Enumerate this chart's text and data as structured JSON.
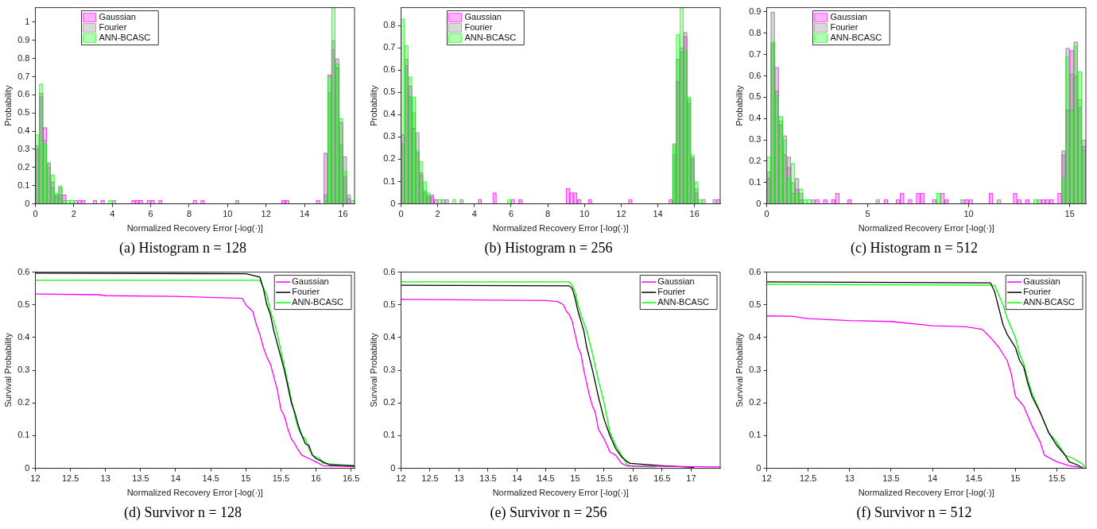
{
  "chart_data": [
    {
      "type": "histogram",
      "title": "(a) Histogram n = 128",
      "xlabel": "Normalized Recovery Error [-log(·)]",
      "ylabel": "Probability",
      "legend": "top left",
      "bins": [
        0,
        0.2,
        0.4,
        0.6,
        0.8,
        1,
        1.2,
        1.4,
        1.6,
        1.8,
        2,
        2.2,
        2.4,
        2.6,
        3,
        3.2,
        3.4,
        3.6,
        3.8,
        4,
        4.2,
        5,
        5.2,
        5.4,
        5.6,
        5.8,
        6,
        6.2,
        6.4,
        6.6,
        8.2,
        8.4,
        8.6,
        8.8,
        10.4,
        10.6,
        12.8,
        13,
        13.2,
        14.6,
        14.8,
        15,
        15.2,
        15.4,
        15.6,
        15.8,
        16,
        16.2,
        16.4,
        16.6
      ],
      "series": [
        {
          "name": "Gaussian",
          "color": "#ff00ff",
          "values": [
            0.3,
            0.59,
            0.42,
            0.22,
            0.12,
            0.05,
            0.05,
            0.05,
            0,
            0,
            0,
            0.02,
            0.02,
            0,
            0.02,
            0,
            0.02,
            0,
            0,
            0,
            0,
            0.02,
            0.02,
            0.02,
            0,
            0.02,
            0.02,
            0,
            0.02,
            0,
            0.02,
            0,
            0.02,
            0,
            0,
            0,
            0.02,
            0.02,
            0,
            0.02,
            0,
            0.28,
            0.71,
            0.85,
            0.75,
            0.45,
            0.15,
            0.03,
            0
          ]
        },
        {
          "name": "Fourier",
          "color": "#808080",
          "values": [
            0.32,
            0.61,
            0.35,
            0.2,
            0.09,
            0.04,
            0.09,
            0,
            0,
            0,
            0.02,
            0,
            0,
            0,
            0,
            0,
            0,
            0,
            0,
            0.02,
            0,
            0,
            0,
            0,
            0,
            0,
            0,
            0,
            0,
            0,
            0,
            0,
            0,
            0,
            0.02,
            0,
            0,
            0,
            0,
            0,
            0,
            0.05,
            0.61,
            0.9,
            0.8,
            0.33,
            0.26,
            0.05,
            0
          ]
        },
        {
          "name": "ANN-BCASC",
          "color": "#00ff00",
          "values": [
            0.38,
            0.66,
            0.33,
            0.23,
            0.16,
            0.06,
            0.1,
            0.02,
            0.02,
            0.02,
            0,
            0,
            0,
            0,
            0,
            0,
            0,
            0,
            0.02,
            0,
            0,
            0,
            0,
            0,
            0,
            0,
            0,
            0,
            0,
            0,
            0,
            0,
            0,
            0,
            0,
            0,
            0,
            0,
            0,
            0,
            0,
            0.02,
            0.7,
            1.08,
            0.77,
            0.47,
            0.18,
            0,
            0.02
          ]
        }
      ],
      "xlim": [
        0,
        16.6
      ],
      "xticks": [
        0,
        2,
        4,
        6,
        8,
        10,
        12,
        14,
        16
      ],
      "ylim": [
        0,
        1.08
      ],
      "yticks": [
        0,
        0.1,
        0.2,
        0.3,
        0.4,
        0.5,
        0.6,
        0.7,
        0.8,
        0.9,
        1
      ]
    },
    {
      "type": "histogram",
      "title": "(b) Histogram n = 256",
      "xlabel": "Normalized Recovery Error [-log(·)]",
      "ylabel": "Probability",
      "legend": "top left",
      "bins": [
        0,
        0.2,
        0.4,
        0.6,
        0.8,
        1,
        1.2,
        1.4,
        1.6,
        1.8,
        2,
        2.2,
        2.4,
        2.6,
        2.8,
        3,
        3.2,
        3.4,
        4.2,
        4.4,
        5,
        5.2,
        5.8,
        6,
        6.2,
        6.4,
        6.6,
        9,
        9.2,
        9.4,
        9.6,
        9.8,
        10.2,
        10.4,
        12.4,
        12.6,
        14.6,
        14.8,
        15,
        15.2,
        15.4,
        15.6,
        15.8,
        16,
        16.2,
        16.4,
        16.6,
        17,
        17.2,
        17.4
      ],
      "series": [
        {
          "name": "Gaussian",
          "color": "#ff00ff",
          "values": [
            0.31,
            0.62,
            0.53,
            0.34,
            0.23,
            0.14,
            0.05,
            0.03,
            0.04,
            0.02,
            0,
            0,
            0,
            0,
            0,
            0,
            0,
            0,
            0.02,
            0,
            0.05,
            0,
            0,
            0.02,
            0,
            0.02,
            0,
            0.07,
            0.05,
            0.05,
            0.02,
            0,
            0.02,
            0,
            0.02,
            0,
            0.02,
            0.22,
            0.55,
            0.68,
            0.75,
            0.45,
            0.2,
            0.05,
            0,
            0,
            0,
            0,
            0.02
          ]
        },
        {
          "name": "Fourier",
          "color": "#808080",
          "values": [
            0.27,
            0.65,
            0.48,
            0.41,
            0.32,
            0.13,
            0.06,
            0.04,
            0.03,
            0,
            0,
            0.02,
            0.02,
            0,
            0,
            0,
            0.02,
            0,
            0,
            0,
            0,
            0,
            0,
            0,
            0,
            0,
            0,
            0,
            0,
            0,
            0,
            0,
            0,
            0,
            0,
            0,
            0,
            0.27,
            0.65,
            0.7,
            0.77,
            0.47,
            0.21,
            0.07,
            0,
            0.02,
            0,
            0.02,
            0
          ]
        },
        {
          "name": "ANN-BCASC",
          "color": "#00ff00",
          "values": [
            0.83,
            0.71,
            0.57,
            0.48,
            0.24,
            0.19,
            0.1,
            0.05,
            0,
            0,
            0.02,
            0,
            0,
            0,
            0.02,
            0,
            0,
            0,
            0,
            0,
            0,
            0,
            0.02,
            0,
            0,
            0,
            0,
            0,
            0,
            0,
            0,
            0,
            0,
            0,
            0,
            0,
            0,
            0.26,
            0.76,
            0.88,
            0.69,
            0.48,
            0.22,
            0.1,
            0.02,
            0,
            0,
            0,
            0
          ]
        }
      ],
      "xlim": [
        0,
        17.4
      ],
      "xticks": [
        0,
        2,
        4,
        6,
        8,
        10,
        12,
        14,
        16
      ],
      "ylim": [
        0,
        0.88
      ],
      "yticks": [
        0,
        0.1,
        0.2,
        0.3,
        0.4,
        0.5,
        0.6,
        0.7,
        0.8
      ]
    },
    {
      "type": "histogram",
      "title": "(c) Histogram n = 512",
      "xlabel": "Normalized Recovery Error [-log(·)]",
      "ylabel": "Probability",
      "legend": "top left",
      "bins": [
        0,
        0.2,
        0.4,
        0.6,
        0.8,
        1,
        1.2,
        1.4,
        1.6,
        1.8,
        2,
        2.2,
        2.4,
        2.6,
        2.8,
        3,
        3.2,
        3.4,
        3.6,
        4,
        4.2,
        5.4,
        5.6,
        5.8,
        6,
        6.4,
        6.6,
        6.8,
        7,
        7.2,
        7.4,
        7.6,
        7.8,
        8.2,
        8.4,
        8.6,
        8.8,
        9,
        9.6,
        9.8,
        10,
        10.2,
        11,
        11.2,
        11.4,
        11.6,
        12.2,
        12.4,
        12.6,
        12.8,
        13,
        13.2,
        13.4,
        13.6,
        13.8,
        14,
        14.2,
        14.4,
        14.6,
        14.8,
        15,
        15.2,
        15.4,
        15.6,
        15.8
      ],
      "series": [
        {
          "name": "Gaussian",
          "color": "#ff00ff",
          "values": [
            0.12,
            0.75,
            0.64,
            0.37,
            0.23,
            0.17,
            0.05,
            0.07,
            0.02,
            0,
            0,
            0,
            0.02,
            0,
            0.02,
            0,
            0.02,
            0.05,
            0,
            0.02,
            0,
            0,
            0,
            0.02,
            0,
            0.02,
            0.05,
            0,
            0.02,
            0,
            0.05,
            0.05,
            0,
            0.02,
            0,
            0.05,
            0.02,
            0,
            0,
            0.02,
            0.02,
            0,
            0.05,
            0,
            0,
            0,
            0.05,
            0.02,
            0,
            0.02,
            0,
            0,
            0,
            0.02,
            0.02,
            0.02,
            0,
            0.05,
            0.23,
            0.44,
            0.72,
            0.6,
            0.45,
            0.27
          ]
        },
        {
          "name": "Fourier",
          "color": "#808080",
          "values": [
            0.15,
            0.9,
            0.53,
            0.39,
            0.32,
            0.22,
            0.1,
            0.12,
            0.05,
            0,
            0,
            0.02,
            0,
            0,
            0,
            0,
            0,
            0,
            0,
            0,
            0,
            0.02,
            0,
            0,
            0,
            0,
            0,
            0,
            0,
            0,
            0,
            0,
            0,
            0,
            0,
            0,
            0,
            0,
            0.02,
            0,
            0,
            0,
            0,
            0,
            0.02,
            0,
            0,
            0,
            0,
            0,
            0,
            0,
            0.02,
            0,
            0,
            0,
            0,
            0,
            0.25,
            0.73,
            0.61,
            0.76,
            0.49,
            0.3
          ]
        },
        {
          "name": "ANN-BCASC",
          "color": "#00ff00",
          "values": [
            0.22,
            0.76,
            0.51,
            0.41,
            0.3,
            0.12,
            0.19,
            0.05,
            0.07,
            0.02,
            0.02,
            0,
            0,
            0,
            0,
            0,
            0,
            0,
            0,
            0,
            0,
            0,
            0,
            0,
            0,
            0,
            0,
            0,
            0,
            0,
            0,
            0,
            0,
            0,
            0.05,
            0,
            0,
            0,
            0,
            0,
            0,
            0,
            0,
            0,
            0,
            0,
            0,
            0,
            0,
            0,
            0,
            0.02,
            0,
            0,
            0,
            0,
            0,
            0,
            0.12,
            0.69,
            0.44,
            0.74,
            0.62,
            0.25
          ]
        }
      ],
      "xlim": [
        0,
        15.8
      ],
      "xticks": [
        0,
        5,
        10,
        15
      ],
      "ylim": [
        0,
        0.92
      ],
      "yticks": [
        0,
        0.1,
        0.2,
        0.3,
        0.4,
        0.5,
        0.6,
        0.7,
        0.8,
        0.9
      ]
    },
    {
      "type": "line",
      "title": "(d) Survivor n = 128",
      "xlabel": "Normalized Recovery Error [-log(·)]",
      "ylabel": "Survival Probability",
      "legend": "top right",
      "marker": "none",
      "series": [
        {
          "name": "Gaussian",
          "color": "#ff00ff",
          "x": [
            12,
            12.9,
            13,
            14,
            14.95,
            15,
            15.1,
            15.15,
            15.2,
            15.25,
            15.3,
            15.35,
            15.4,
            15.45,
            15.5,
            15.55,
            15.6,
            15.65,
            15.7,
            15.75,
            15.8,
            15.9,
            16,
            16.1,
            16.55
          ],
          "values": [
            0.533,
            0.531,
            0.528,
            0.526,
            0.52,
            0.5,
            0.48,
            0.44,
            0.41,
            0.37,
            0.34,
            0.32,
            0.28,
            0.24,
            0.18,
            0.16,
            0.12,
            0.09,
            0.075,
            0.055,
            0.04,
            0.03,
            0.02,
            0.008,
            0.005
          ]
        },
        {
          "name": "Fourier",
          "color": "#000000",
          "x": [
            12,
            15,
            15.1,
            15.2,
            15.25,
            15.3,
            15.35,
            15.4,
            15.45,
            15.5,
            15.55,
            15.6,
            15.65,
            15.7,
            15.75,
            15.8,
            15.85,
            15.9,
            15.95,
            16,
            16.1,
            16.2,
            16.55
          ],
          "values": [
            0.597,
            0.595,
            0.59,
            0.585,
            0.55,
            0.5,
            0.47,
            0.42,
            0.38,
            0.34,
            0.3,
            0.25,
            0.2,
            0.17,
            0.13,
            0.1,
            0.075,
            0.07,
            0.04,
            0.03,
            0.02,
            0.01,
            0.008
          ]
        },
        {
          "name": "ANN-BCASC",
          "color": "#00ff00",
          "x": [
            12,
            15.2,
            15.3,
            15.35,
            15.4,
            15.45,
            15.5,
            15.55,
            15.6,
            15.65,
            15.7,
            15.75,
            15.8,
            15.85,
            15.9,
            15.95,
            16.05,
            16.1,
            16.55
          ],
          "values": [
            0.575,
            0.575,
            0.53,
            0.48,
            0.45,
            0.41,
            0.36,
            0.31,
            0.26,
            0.21,
            0.16,
            0.12,
            0.1,
            0.09,
            0.06,
            0.04,
            0.03,
            0.015,
            0.008
          ]
        }
      ],
      "xlim": [
        12,
        16.55
      ],
      "xticks": [
        12,
        12.5,
        13,
        13.5,
        14,
        14.5,
        15,
        15.5,
        16,
        16.5
      ],
      "ylim": [
        0,
        0.6
      ],
      "yticks": [
        0,
        0.1,
        0.2,
        0.3,
        0.4,
        0.5,
        0.6
      ]
    },
    {
      "type": "line",
      "title": "(e) Survivor n = 256",
      "xlabel": "Normalized Recovery Error [-log(·)]",
      "ylabel": "Survival Probability",
      "legend": "top right",
      "marker": "none",
      "series": [
        {
          "name": "Gaussian",
          "color": "#ff00ff",
          "x": [
            12,
            14.5,
            14.7,
            14.8,
            14.85,
            14.9,
            14.95,
            15,
            15.05,
            15.1,
            15.15,
            15.2,
            15.25,
            15.3,
            15.35,
            15.4,
            15.5,
            15.6,
            15.7,
            15.8,
            15.9,
            17.5
          ],
          "values": [
            0.517,
            0.513,
            0.51,
            0.5,
            0.48,
            0.47,
            0.45,
            0.41,
            0.37,
            0.35,
            0.3,
            0.26,
            0.22,
            0.19,
            0.17,
            0.12,
            0.09,
            0.05,
            0.04,
            0.015,
            0.007,
            0.004
          ]
        },
        {
          "name": "Fourier",
          "color": "#000000",
          "x": [
            12,
            14.9,
            14.95,
            15,
            15.05,
            15.1,
            15.15,
            15.2,
            15.3,
            15.4,
            15.5,
            15.6,
            15.7,
            15.8,
            15.9,
            15.95,
            16.5,
            17.05
          ],
          "values": [
            0.56,
            0.558,
            0.55,
            0.52,
            0.48,
            0.45,
            0.42,
            0.37,
            0.3,
            0.22,
            0.15,
            0.1,
            0.06,
            0.035,
            0.02,
            0.015,
            0.008,
            0.003
          ]
        },
        {
          "name": "ANN-BCASC",
          "color": "#00ff00",
          "x": [
            12,
            14.9,
            14.95,
            15,
            15.05,
            15.1,
            15.2,
            15.3,
            15.4,
            15.5,
            15.6,
            15.7,
            15.8,
            15.9,
            16,
            16.4
          ],
          "values": [
            0.57,
            0.57,
            0.56,
            0.54,
            0.5,
            0.47,
            0.42,
            0.35,
            0.27,
            0.2,
            0.11,
            0.07,
            0.04,
            0.01,
            0.006,
            0.004
          ]
        }
      ],
      "xlim": [
        12,
        17.5
      ],
      "xticks": [
        12,
        12.5,
        13,
        13.5,
        14,
        14.5,
        15,
        15.5,
        16,
        16.5,
        17
      ],
      "ylim": [
        0,
        0.6
      ],
      "yticks": [
        0,
        0.1,
        0.2,
        0.3,
        0.4,
        0.5,
        0.6
      ]
    },
    {
      "type": "line",
      "title": "(f) Survivor n = 512",
      "xlabel": "Normalized Recovery Error [-log(·)]",
      "ylabel": "Survival Probability",
      "legend": "top right",
      "marker": "none",
      "series": [
        {
          "name": "Gaussian",
          "color": "#ff00ff",
          "x": [
            12,
            12.3,
            12.5,
            13,
            13.5,
            14,
            14.4,
            14.6,
            14.7,
            14.8,
            14.85,
            14.9,
            14.95,
            15,
            15.1,
            15.15,
            15.2,
            15.3,
            15.35,
            15.5,
            15.65,
            15.8
          ],
          "values": [
            0.466,
            0.465,
            0.458,
            0.452,
            0.449,
            0.436,
            0.433,
            0.425,
            0.4,
            0.37,
            0.35,
            0.33,
            0.29,
            0.22,
            0.19,
            0.16,
            0.13,
            0.08,
            0.04,
            0.02,
            0.008,
            0.003
          ]
        },
        {
          "name": "Fourier",
          "color": "#000000",
          "x": [
            12,
            14.7,
            14.75,
            14.8,
            14.85,
            14.9,
            15,
            15.05,
            15.1,
            15.15,
            15.2,
            15.3,
            15.4,
            15.5,
            15.6,
            15.65,
            15.75,
            15.82
          ],
          "values": [
            0.57,
            0.567,
            0.54,
            0.49,
            0.44,
            0.41,
            0.37,
            0.33,
            0.31,
            0.26,
            0.22,
            0.17,
            0.11,
            0.07,
            0.04,
            0.02,
            0.01,
            0
          ]
        },
        {
          "name": "ANN-BCASC",
          "color": "#00ff00",
          "x": [
            12,
            14.75,
            14.8,
            14.85,
            14.9,
            15,
            15.05,
            15.1,
            15.15,
            15.2,
            15.3,
            15.4,
            15.5,
            15.6,
            15.7,
            15.8,
            15.85
          ],
          "values": [
            0.563,
            0.56,
            0.53,
            0.5,
            0.46,
            0.4,
            0.35,
            0.32,
            0.27,
            0.23,
            0.17,
            0.11,
            0.08,
            0.04,
            0.03,
            0.015,
            0
          ]
        }
      ],
      "xlim": [
        12,
        15.85
      ],
      "xticks": [
        12,
        12.5,
        13,
        13.5,
        14,
        14.5,
        15,
        15.5
      ],
      "ylim": [
        0,
        0.6
      ],
      "yticks": [
        0,
        0.1,
        0.2,
        0.3,
        0.4,
        0.5,
        0.6
      ]
    }
  ]
}
